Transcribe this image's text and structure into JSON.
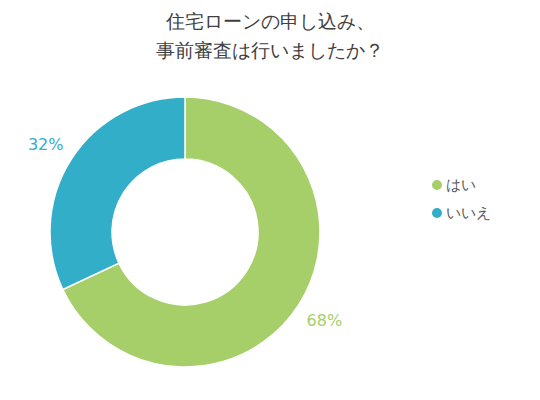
{
  "chart_data": {
    "type": "pie",
    "title": "住宅ローンの申し込み、\n事前審査は行いましたか？",
    "categories": [
      "はい",
      "いいえ"
    ],
    "values": [
      68,
      32
    ],
    "value_labels": [
      "68%",
      "32%"
    ],
    "colors": [
      "#a6cf6a",
      "#33aec9"
    ],
    "data_labels": true,
    "legend": "right"
  }
}
